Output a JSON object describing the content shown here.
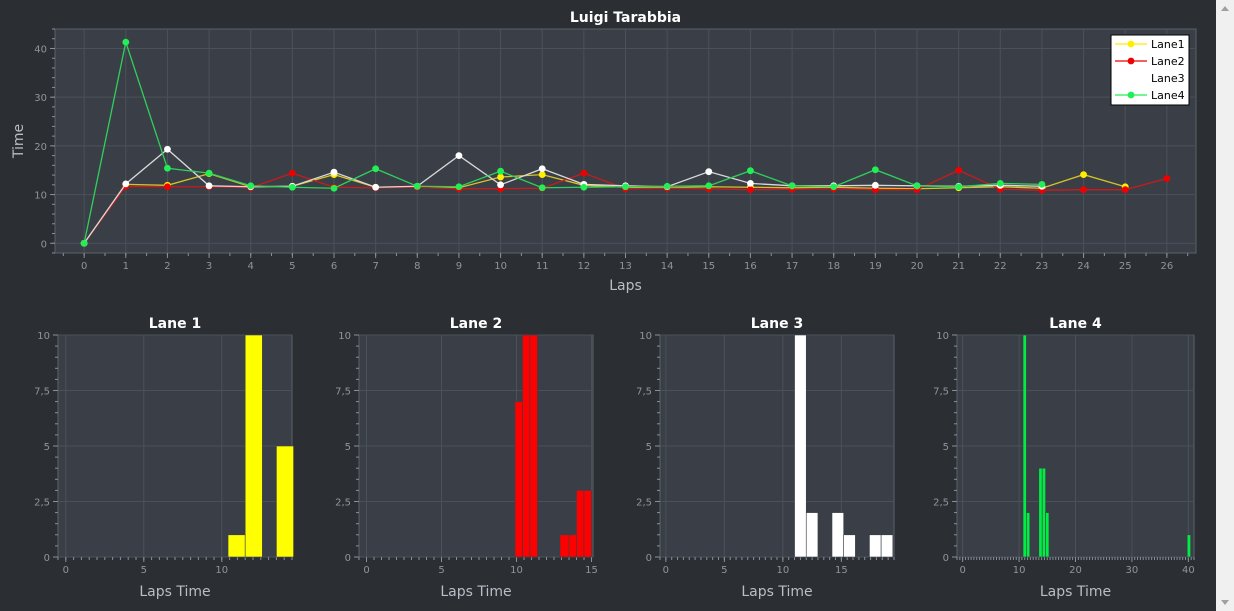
{
  "chart_data": [
    {
      "type": "line",
      "title": "Luigi Tarabbia",
      "xlabel": "Laps",
      "ylabel": "Time",
      "xlim": [
        -0.7,
        26.7
      ],
      "ylim": [
        -2,
        44
      ],
      "xticks": [
        0,
        1,
        2,
        3,
        4,
        5,
        6,
        7,
        8,
        9,
        10,
        11,
        12,
        13,
        14,
        15,
        16,
        17,
        18,
        19,
        20,
        21,
        22,
        23,
        24,
        25,
        26
      ],
      "yticks": [
        0,
        10,
        20,
        30,
        40
      ],
      "legend_position": "top-right",
      "series": [
        {
          "name": "Lane1",
          "color": "#ffee00",
          "x": [
            0,
            1,
            2,
            3,
            4,
            5,
            6,
            7,
            8,
            9,
            10,
            11,
            12,
            13,
            14,
            15,
            16,
            17,
            18,
            19,
            20,
            21,
            22,
            23,
            24,
            25
          ],
          "values": [
            0,
            12.1,
            11.9,
            14.3,
            11.6,
            11.7,
            14.1,
            11.5,
            11.6,
            11.4,
            13.6,
            14.1,
            11.9,
            11.5,
            11.4,
            11.6,
            11.5,
            11.4,
            11.5,
            11.3,
            11.2,
            11.4,
            11.6,
            11.3,
            14.1,
            11.6
          ]
        },
        {
          "name": "Lane2",
          "color": "#ee0000",
          "x": [
            0,
            1,
            2,
            3,
            4,
            5,
            6,
            7,
            8,
            9,
            10,
            11,
            12,
            13,
            14,
            15,
            16,
            17,
            18,
            19,
            20,
            21,
            22,
            23,
            24,
            25,
            26
          ],
          "values": [
            0,
            11.7,
            11.6,
            11.6,
            11.4,
            14.4,
            11.5,
            11.4,
            11.5,
            11.2,
            11.2,
            11.3,
            14.4,
            11.2,
            11.3,
            11.2,
            11.0,
            11.1,
            11.2,
            11.0,
            11.0,
            15.0,
            11.1,
            10.9,
            11.0,
            11.0,
            13.3
          ]
        },
        {
          "name": "Lane3",
          "color": "#ffffff",
          "x": [
            0,
            1,
            2,
            3,
            4,
            5,
            6,
            7,
            8,
            9,
            10,
            11,
            12,
            13,
            14,
            15,
            16,
            17,
            18,
            19,
            20,
            21,
            22,
            23
          ],
          "values": [
            0,
            12.2,
            19.3,
            11.8,
            11.6,
            11.7,
            14.6,
            11.5,
            11.7,
            18.0,
            12.0,
            15.3,
            12.1,
            11.8,
            11.6,
            14.7,
            12.3,
            11.8,
            11.8,
            11.9,
            11.8,
            11.7,
            11.9,
            11.7
          ]
        },
        {
          "name": "Lane4",
          "color": "#22ee55",
          "x": [
            0,
            1,
            2,
            3,
            4,
            5,
            6,
            7,
            8,
            9,
            10,
            11,
            12,
            13,
            14,
            15,
            16,
            17,
            18,
            19,
            20,
            21,
            22,
            23
          ],
          "values": [
            0,
            41.3,
            15.4,
            14.4,
            11.8,
            11.5,
            11.3,
            15.3,
            11.7,
            11.6,
            14.8,
            11.4,
            11.5,
            11.6,
            11.7,
            11.8,
            14.9,
            11.8,
            11.6,
            15.1,
            11.8,
            11.6,
            12.3,
            12.1
          ]
        }
      ]
    },
    {
      "type": "bar",
      "title": "Lane 1",
      "xlabel": "Laps Time",
      "ylabel": "",
      "color": "#ffff00",
      "xlim": [
        -0.5,
        14.5
      ],
      "ylim": [
        0,
        10
      ],
      "xticks": [
        0,
        5,
        10
      ],
      "yticks": [
        0,
        2.5,
        5,
        7.5,
        10
      ],
      "ytick_labels": [
        "0",
        "2,5",
        "5",
        "7,5",
        "10"
      ],
      "bins": [
        [
          10.4,
          11.5,
          1
        ],
        [
          11.5,
          12.6,
          10
        ],
        [
          13.5,
          14.6,
          5
        ]
      ]
    },
    {
      "type": "bar",
      "title": "Lane 2",
      "xlabel": "Laps Time",
      "ylabel": "",
      "color": "#ff0000",
      "xlim": [
        -0.5,
        15.1
      ],
      "ylim": [
        0,
        10
      ],
      "xticks": [
        0,
        5,
        10,
        15
      ],
      "yticks": [
        0,
        2.5,
        5,
        7.5,
        10
      ],
      "ytick_labels": [
        "0",
        "2,5",
        "5",
        "7,5",
        "10"
      ],
      "bins": [
        [
          9.9,
          10.4,
          7
        ],
        [
          10.4,
          10.9,
          10
        ],
        [
          10.9,
          11.4,
          10
        ],
        [
          12.9,
          13.5,
          1
        ],
        [
          13.5,
          14.0,
          1
        ],
        [
          14.0,
          14.5,
          3
        ],
        [
          14.5,
          15.0,
          3
        ]
      ]
    },
    {
      "type": "bar",
      "title": "Lane 3",
      "xlabel": "Laps Time",
      "ylabel": "",
      "color": "#ffffff",
      "xlim": [
        -0.5,
        19.5
      ],
      "ylim": [
        0,
        10
      ],
      "xticks": [
        0,
        5,
        10,
        15
      ],
      "yticks": [
        0,
        2.5,
        5,
        7.5,
        10
      ],
      "ytick_labels": [
        "0",
        "2,5",
        "5",
        "7,5",
        "10"
      ],
      "bins": [
        [
          11.0,
          12.0,
          10
        ],
        [
          12.0,
          13.0,
          2
        ],
        [
          14.2,
          15.2,
          2
        ],
        [
          15.2,
          16.2,
          1
        ],
        [
          17.4,
          18.4,
          1
        ],
        [
          18.4,
          19.4,
          1
        ]
      ]
    },
    {
      "type": "bar",
      "title": "Lane 4",
      "xlabel": "Laps Time",
      "ylabel": "",
      "color": "#00ee44",
      "xlim": [
        -1,
        41
      ],
      "ylim": [
        0,
        10
      ],
      "xticks": [
        0,
        10,
        20,
        30,
        40
      ],
      "yticks": [
        0,
        2.5,
        5,
        7.5,
        10
      ],
      "ytick_labels": [
        "0",
        "2,5",
        "5",
        "7,5",
        "10"
      ],
      "bins": [
        [
          10.7,
          11.3,
          10
        ],
        [
          11.3,
          11.9,
          2
        ],
        [
          13.5,
          14.1,
          4
        ],
        [
          14.1,
          14.7,
          4
        ],
        [
          14.7,
          15.3,
          2
        ],
        [
          39.8,
          40.4,
          1
        ]
      ]
    }
  ]
}
